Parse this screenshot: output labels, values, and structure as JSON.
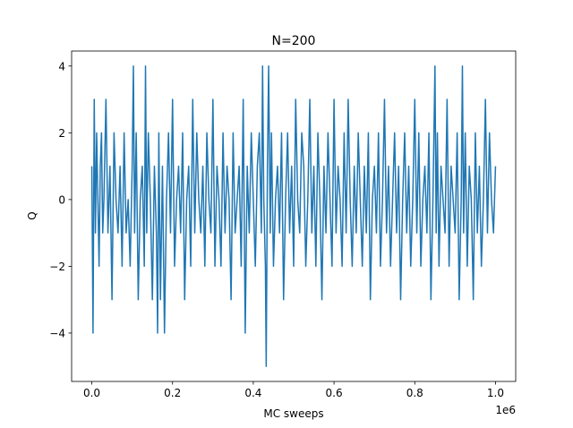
{
  "chart_data": {
    "type": "line",
    "title": "N=200",
    "xlabel": "MC sweeps",
    "ylabel": "Q",
    "x_offset_label": "1e6",
    "xlim": [
      -50000,
      1050000
    ],
    "ylim": [
      -5.45,
      4.45
    ],
    "x_ticks": [
      0,
      200000,
      400000,
      600000,
      800000,
      1000000
    ],
    "x_tick_labels": [
      "0.0",
      "0.2",
      "0.4",
      "0.6",
      "0.8",
      "1.0"
    ],
    "y_ticks": [
      -4,
      -2,
      0,
      2,
      4
    ],
    "y_tick_labels": [
      "−4",
      "−2",
      "0",
      "2",
      "4"
    ],
    "grid": false,
    "series": [
      {
        "color": "#1f77b4",
        "x": [
          0,
          3000,
          6000,
          9000,
          12000,
          15000,
          18000,
          21000,
          24000,
          27000,
          30000,
          35000,
          40000,
          45000,
          50000,
          55000,
          60000,
          65000,
          70000,
          75000,
          80000,
          85000,
          90000,
          95000,
          100000,
          103000,
          106000,
          110000,
          115000,
          120000,
          125000,
          130000,
          133000,
          136000,
          140000,
          145000,
          150000,
          155000,
          160000,
          163000,
          166000,
          170000,
          175000,
          180000,
          185000,
          190000,
          195000,
          200000,
          205000,
          210000,
          215000,
          220000,
          225000,
          230000,
          235000,
          240000,
          245000,
          250000,
          255000,
          260000,
          265000,
          270000,
          275000,
          280000,
          285000,
          290000,
          295000,
          300000,
          305000,
          310000,
          315000,
          320000,
          325000,
          330000,
          335000,
          340000,
          345000,
          350000,
          355000,
          360000,
          365000,
          370000,
          375000,
          380000,
          385000,
          390000,
          395000,
          400000,
          405000,
          410000,
          415000,
          420000,
          423000,
          426000,
          430000,
          432000,
          435000,
          438000,
          442000,
          445000,
          450000,
          455000,
          460000,
          465000,
          470000,
          475000,
          480000,
          485000,
          490000,
          495000,
          500000,
          505000,
          510000,
          515000,
          520000,
          525000,
          530000,
          535000,
          540000,
          545000,
          550000,
          555000,
          560000,
          565000,
          570000,
          575000,
          580000,
          585000,
          590000,
          595000,
          600000,
          605000,
          610000,
          615000,
          620000,
          625000,
          630000,
          635000,
          640000,
          645000,
          650000,
          655000,
          660000,
          665000,
          670000,
          675000,
          680000,
          685000,
          690000,
          695000,
          700000,
          705000,
          710000,
          715000,
          720000,
          725000,
          730000,
          735000,
          740000,
          745000,
          750000,
          755000,
          760000,
          765000,
          770000,
          775000,
          780000,
          785000,
          790000,
          795000,
          800000,
          805000,
          810000,
          815000,
          820000,
          825000,
          830000,
          835000,
          840000,
          845000,
          850000,
          853000,
          856000,
          860000,
          865000,
          870000,
          875000,
          880000,
          885000,
          890000,
          895000,
          900000,
          905000,
          910000,
          915000,
          918000,
          921000,
          925000,
          930000,
          935000,
          940000,
          945000,
          950000,
          955000,
          960000,
          965000,
          970000,
          975000,
          980000,
          985000,
          990000,
          995000,
          1000000
        ],
        "y": [
          1,
          -4,
          3,
          -1,
          2,
          0,
          -2,
          1,
          2,
          -1,
          0,
          3,
          -1,
          1,
          -3,
          2,
          0,
          -1,
          1,
          -2,
          2,
          -1,
          0,
          -2,
          1,
          4,
          -1,
          2,
          -3,
          0,
          1,
          -2,
          4,
          -1,
          2,
          0,
          -3,
          1,
          -1,
          -4,
          2,
          -3,
          1,
          -4,
          0,
          2,
          -1,
          3,
          -2,
          0,
          1,
          -1,
          2,
          -3,
          0,
          1,
          -2,
          3,
          -1,
          2,
          0,
          -1,
          1,
          -2,
          2,
          0,
          -1,
          3,
          -2,
          1,
          0,
          -2,
          2,
          -1,
          1,
          0,
          -3,
          2,
          -1,
          0,
          1,
          -2,
          3,
          -4,
          1,
          -1,
          2,
          0,
          -2,
          1,
          2,
          -1,
          4,
          0,
          -2,
          -5,
          1,
          4,
          -1,
          2,
          -2,
          0,
          1,
          -1,
          2,
          -3,
          0,
          2,
          -1,
          1,
          -2,
          3,
          0,
          -1,
          2,
          1,
          -2,
          0,
          3,
          -1,
          1,
          -2,
          2,
          0,
          -3,
          1,
          -1,
          2,
          0,
          -2,
          3,
          -1,
          1,
          0,
          -2,
          2,
          -1,
          3,
          0,
          -2,
          1,
          -1,
          2,
          0,
          -2,
          1,
          -1,
          2,
          -3,
          0,
          1,
          -1,
          2,
          -2,
          0,
          3,
          -1,
          1,
          -2,
          0,
          2,
          -1,
          1,
          -3,
          0,
          2,
          -1,
          1,
          -2,
          0,
          3,
          -1,
          2,
          -2,
          0,
          1,
          -1,
          2,
          -3,
          0,
          4,
          -1,
          2,
          -2,
          1,
          0,
          -1,
          3,
          -2,
          1,
          0,
          -1,
          2,
          -3,
          0,
          4,
          -1,
          2,
          -2,
          1,
          0,
          -3,
          2,
          -1,
          1,
          -2,
          0,
          3,
          -1,
          2,
          0,
          -1,
          1
        ]
      }
    ]
  }
}
